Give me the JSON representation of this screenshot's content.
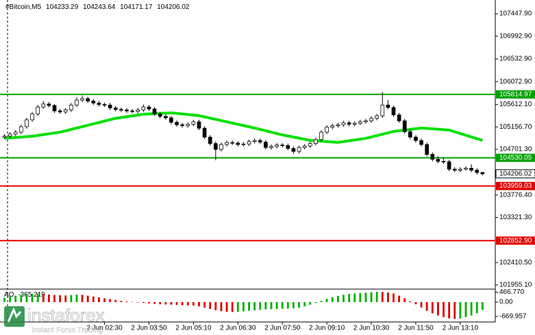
{
  "chart_data": {
    "type": "candlestick",
    "symbol": "#Bitcoin,M5",
    "x": [
      -30,
      -20,
      -10,
      0,
      10,
      20,
      30,
      40,
      50,
      60,
      70,
      80,
      90,
      100,
      110,
      120,
      130,
      140,
      150,
      160,
      170,
      180,
      190,
      200,
      210,
      220,
      230,
      240,
      250,
      260,
      270,
      280,
      290,
      300,
      310,
      320,
      330,
      340,
      350,
      360,
      370,
      380,
      390,
      400,
      410,
      420,
      430,
      440,
      450,
      460,
      470,
      480,
      490,
      500,
      510,
      520,
      530,
      540,
      550,
      560,
      570,
      580,
      590,
      600,
      610,
      620,
      630,
      640,
      650,
      660,
      670,
      680,
      690,
      700,
      710,
      720,
      730,
      740,
      750,
      760,
      770,
      780,
      790,
      800,
      810,
      820,
      830
    ],
    "open": [
      104950,
      104970,
      105010,
      105050,
      105160,
      105300,
      105420,
      105560,
      105620,
      105590,
      105480,
      105460,
      105500,
      105600,
      105700,
      105730,
      105680,
      105640,
      105610,
      105600,
      105540,
      105510,
      105500,
      105480,
      105470,
      105500,
      105560,
      105520,
      105420,
      105370,
      105340,
      105250,
      105200,
      105180,
      105210,
      105260,
      105130,
      104950,
      104820,
      104700,
      104800,
      104840,
      104830,
      104800,
      104810,
      104860,
      104880,
      104850,
      104740,
      104760,
      104790,
      104780,
      104720,
      104660,
      104740,
      104770,
      104820,
      104900,
      105050,
      105150,
      105180,
      105200,
      105240,
      105210,
      105230,
      105260,
      105280,
      105330,
      105380,
      105600,
      105550,
      105400,
      105280,
      105060,
      104950,
      104880,
      104800,
      104600,
      104500,
      104460,
      104450,
      104300,
      104280,
      104300,
      104320,
      104280,
      104233.29
    ],
    "high": [
      105010,
      105050,
      105090,
      105200,
      105340,
      105460,
      105600,
      105680,
      105660,
      105620,
      105520,
      105540,
      105640,
      105760,
      105790,
      105770,
      105720,
      105680,
      105650,
      105640,
      105580,
      105550,
      105540,
      105520,
      105540,
      105610,
      105600,
      105560,
      105460,
      105410,
      105380,
      105290,
      105240,
      105250,
      105300,
      105300,
      105170,
      104990,
      104860,
      104840,
      104880,
      104880,
      104870,
      104850,
      104900,
      104920,
      104920,
      104890,
      104800,
      104830,
      104830,
      104820,
      104760,
      104780,
      104810,
      104860,
      104940,
      105090,
      105190,
      105220,
      105240,
      105280,
      105280,
      105270,
      105300,
      105320,
      105370,
      105420,
      105870,
      105700,
      105590,
      105440,
      105320,
      105100,
      104990,
      104920,
      104840,
      104640,
      104560,
      104540,
      104490,
      104340,
      104340,
      104360,
      104400,
      104320,
      104243.64
    ],
    "low": [
      104910,
      104930,
      104970,
      105010,
      105120,
      105260,
      105380,
      105520,
      105550,
      105440,
      105420,
      105420,
      105460,
      105560,
      105660,
      105640,
      105600,
      105570,
      105560,
      105500,
      105470,
      105460,
      105440,
      105430,
      105430,
      105460,
      105480,
      105380,
      105330,
      105300,
      105210,
      105160,
      105140,
      105140,
      105170,
      105090,
      104910,
      104780,
      104480,
      104660,
      104760,
      104790,
      104760,
      104760,
      104770,
      104820,
      104810,
      104700,
      104700,
      104720,
      104740,
      104680,
      104610,
      104620,
      104700,
      104730,
      104780,
      104860,
      105010,
      105110,
      105140,
      105160,
      105170,
      105170,
      105190,
      105220,
      105240,
      105290,
      105340,
      105510,
      105360,
      105240,
      105020,
      104910,
      104840,
      104760,
      104560,
      104460,
      104420,
      104410,
      104260,
      104240,
      104240,
      104270,
      104240,
      104190,
      104171.17
    ],
    "close": [
      104970,
      105010,
      105050,
      105160,
      105300,
      105420,
      105560,
      105620,
      105590,
      105480,
      105460,
      105500,
      105600,
      105700,
      105730,
      105680,
      105640,
      105610,
      105600,
      105540,
      105510,
      105500,
      105480,
      105470,
      105500,
      105560,
      105520,
      105420,
      105370,
      105340,
      105250,
      105200,
      105180,
      105210,
      105260,
      105130,
      104950,
      104820,
      104700,
      104800,
      104840,
      104830,
      104800,
      104810,
      104860,
      104880,
      104850,
      104740,
      104760,
      104790,
      104780,
      104720,
      104660,
      104740,
      104770,
      104820,
      104900,
      105050,
      105150,
      105180,
      105200,
      105240,
      105210,
      105230,
      105260,
      105280,
      105330,
      105380,
      105600,
      105550,
      105400,
      105280,
      105060,
      104950,
      104880,
      104800,
      104600,
      104500,
      104460,
      104450,
      104300,
      104280,
      104300,
      104320,
      104280,
      104233.29,
      104206.02
    ],
    "up_color": "#ffffff",
    "down_color": "#000000",
    "xlim": [
      -38,
      853
    ],
    "xticks": [
      {
        "value": 150,
        "label": "2 Jun 02:30"
      },
      {
        "value": 230,
        "label": "2 Jun 03:50"
      },
      {
        "value": 310,
        "label": "2 Jun 05:10"
      },
      {
        "value": 390,
        "label": "2 Jun 06:30"
      },
      {
        "value": 470,
        "label": "2 Jun 07:50"
      },
      {
        "value": 550,
        "label": "2 Jun 09:10"
      },
      {
        "value": 630,
        "label": "2 Jun 10:30"
      },
      {
        "value": 710,
        "label": "2 Jun 11:50"
      },
      {
        "value": 790,
        "label": "2 Jun 13:10"
      }
    ],
    "ylim": [
      101871.5,
      107726.7
    ],
    "yticks": [
      {
        "value": 107447.9,
        "label": "107447.90"
      },
      {
        "value": 106992.9,
        "label": "106992.90"
      },
      {
        "value": 106532.9,
        "label": "106532.90"
      },
      {
        "value": 106072.9,
        "label": "106072.90"
      },
      {
        "value": 105612.1,
        "label": "105612.10"
      },
      {
        "value": 105156.7,
        "label": "105156.70"
      },
      {
        "value": 104701.3,
        "label": "104701.30"
      },
      {
        "value": 103776.4,
        "label": "103776.40"
      },
      {
        "value": 103321.3,
        "label": "103321.30"
      },
      {
        "value": 102410.5,
        "label": "102410.50"
      },
      {
        "value": 101955.1,
        "label": "101955.10"
      }
    ],
    "levels": [
      {
        "value": 105814.97,
        "color": "#00a000"
      },
      {
        "value": 104530.05,
        "color": "#00a000"
      },
      {
        "value": 103959.03,
        "color": "#e00000"
      },
      {
        "value": {
          "value": 102852.9,
          "label": "102852.90"
        },
        "color": "#e00000"
      }
    ],
    "ma": {
      "color": "#00e000",
      "x": [
        -30,
        20,
        70,
        120,
        170,
        220,
        270,
        320,
        370,
        420,
        470,
        520,
        570,
        620,
        670,
        720,
        770,
        830
      ],
      "values": [
        104925,
        104967,
        105050,
        105190,
        105330,
        105413,
        105441,
        105385,
        105260,
        105134,
        104995,
        104883,
        104842,
        104925,
        105064,
        105134,
        105092,
        104883
      ]
    },
    "indicator": {
      "type": "bar",
      "name": "AO",
      "current": -365.219,
      "values": [
        200,
        260,
        300,
        340,
        370,
        390,
        400,
        380,
        350,
        330,
        320,
        310,
        330,
        350,
        340,
        300,
        260,
        220,
        180,
        140,
        100,
        60,
        30,
        10,
        -20,
        -40,
        -60,
        -80,
        -100,
        -110,
        -120,
        -130,
        -140,
        -150,
        -160,
        -200,
        -260,
        -320,
        -380,
        -420,
        -450,
        -460,
        -450,
        -430,
        -400,
        -380,
        -360,
        -340,
        -330,
        -320,
        -310,
        -300,
        -290,
        -260,
        -200,
        -120,
        -40,
        60,
        150,
        230,
        290,
        340,
        380,
        400,
        420,
        440,
        460,
        480,
        470,
        450,
        400,
        300,
        180,
        40,
        -100,
        -250,
        -400,
        -520,
        -620,
        -700,
        -760,
        -780,
        -760,
        -700,
        -620,
        -520,
        -365.219
      ],
      "up_color": "#00b000",
      "down_color": "#e00000",
      "ylim": [
        -925,
        606
      ],
      "yticks": [
        {
          "value": 466.77,
          "label": "466.770"
        },
        {
          "value": 0,
          "label": "0.00"
        },
        -669.957
      ]
    }
  },
  "watermark": {
    "brand": "instaforex",
    "tagline": "Instant Forex Trading"
  }
}
